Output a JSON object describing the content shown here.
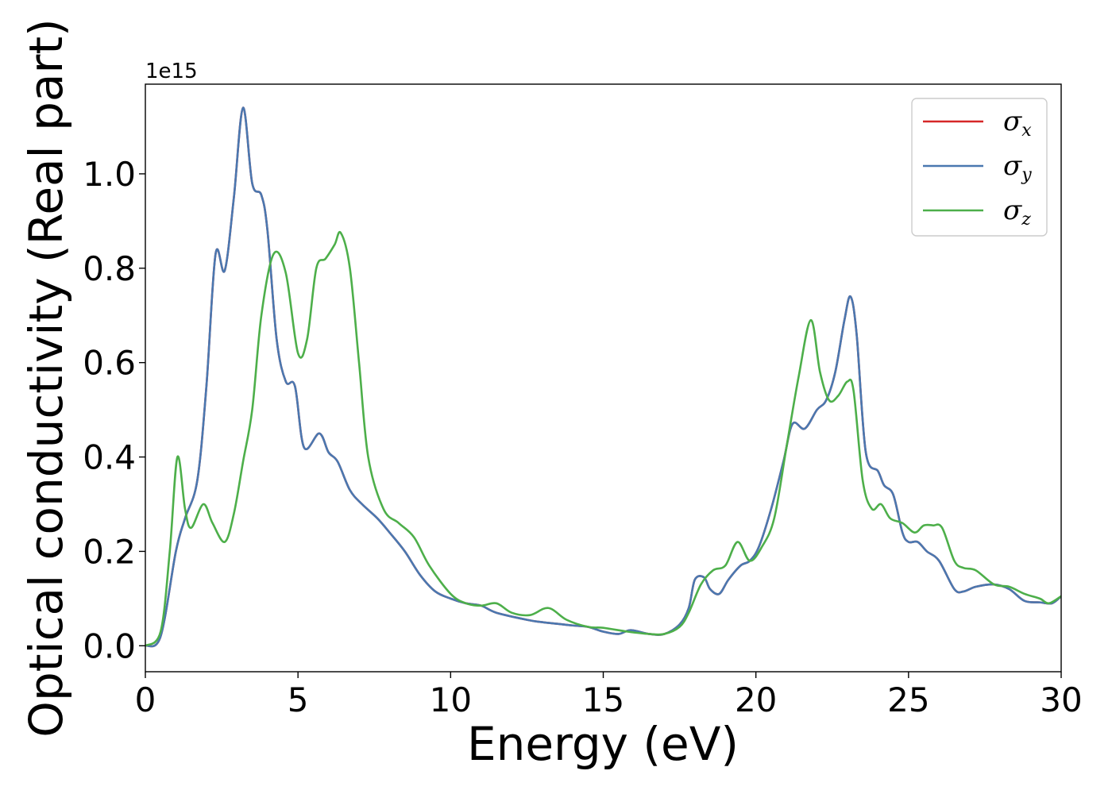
{
  "chart_data": {
    "type": "line",
    "xlabel": "Energy (eV)",
    "ylabel": "Optical conductivity (Real part)",
    "y_offset_label": "1e15",
    "xlim": [
      0,
      30
    ],
    "ylim": [
      -0.055,
      1.19
    ],
    "x_ticks": [
      0,
      5,
      10,
      15,
      20,
      25,
      30
    ],
    "y_ticks": [
      0.0,
      0.2,
      0.4,
      0.6,
      0.8,
      1.0
    ],
    "y_tick_labels": [
      "0.0",
      "0.2",
      "0.4",
      "0.6",
      "0.8",
      "1.0"
    ],
    "grid": false,
    "legend_position": "top-right",
    "series": [
      {
        "name": "σ_x",
        "legend_main": "σ",
        "legend_sub": "x",
        "color": "#d62728",
        "x": [
          0,
          0.5,
          1.0,
          1.3,
          1.7,
          2.0,
          2.3,
          2.6,
          2.9,
          3.2,
          3.5,
          3.8,
          4.0,
          4.3,
          4.6,
          4.9,
          5.2,
          5.7,
          6.0,
          6.3,
          6.7,
          7.1,
          7.6,
          8.0,
          8.5,
          9.0,
          9.5,
          10.0,
          10.5,
          11.0,
          11.5,
          12.5,
          13.0,
          14.0,
          14.5,
          15.0,
          15.5,
          15.9,
          16.5,
          17.0,
          17.5,
          17.8,
          18.0,
          18.3,
          18.5,
          18.8,
          19.1,
          19.5,
          19.8,
          20.1,
          20.5,
          20.9,
          21.2,
          21.6,
          22.0,
          22.3,
          22.6,
          22.9,
          23.1,
          23.3,
          23.6,
          24.0,
          24.2,
          24.5,
          24.8,
          25.0,
          25.3,
          25.6,
          26.0,
          26.5,
          26.8,
          27.2,
          27.8,
          28.3,
          28.8,
          29.3,
          29.7,
          30.0
        ],
        "y": [
          0.0,
          0.02,
          0.2,
          0.27,
          0.35,
          0.55,
          0.83,
          0.795,
          0.95,
          1.14,
          0.98,
          0.955,
          0.88,
          0.65,
          0.56,
          0.55,
          0.42,
          0.45,
          0.41,
          0.39,
          0.33,
          0.3,
          0.27,
          0.24,
          0.2,
          0.15,
          0.115,
          0.1,
          0.09,
          0.085,
          0.07,
          0.055,
          0.05,
          0.043,
          0.04,
          0.03,
          0.025,
          0.033,
          0.025,
          0.025,
          0.045,
          0.08,
          0.14,
          0.145,
          0.12,
          0.11,
          0.14,
          0.17,
          0.18,
          0.21,
          0.29,
          0.39,
          0.47,
          0.46,
          0.5,
          0.52,
          0.58,
          0.69,
          0.74,
          0.66,
          0.41,
          0.37,
          0.34,
          0.32,
          0.24,
          0.22,
          0.22,
          0.2,
          0.18,
          0.12,
          0.115,
          0.125,
          0.13,
          0.12,
          0.095,
          0.092,
          0.09,
          0.105
        ]
      },
      {
        "name": "σ_y",
        "legend_main": "σ",
        "legend_sub": "y",
        "color": "#4a78b0",
        "x": [
          0,
          0.5,
          1.0,
          1.3,
          1.7,
          2.0,
          2.3,
          2.6,
          2.9,
          3.2,
          3.5,
          3.8,
          4.0,
          4.3,
          4.6,
          4.9,
          5.2,
          5.7,
          6.0,
          6.3,
          6.7,
          7.1,
          7.6,
          8.0,
          8.5,
          9.0,
          9.5,
          10.0,
          10.5,
          11.0,
          11.5,
          12.5,
          13.0,
          14.0,
          14.5,
          15.0,
          15.5,
          15.9,
          16.5,
          17.0,
          17.5,
          17.8,
          18.0,
          18.3,
          18.5,
          18.8,
          19.1,
          19.5,
          19.8,
          20.1,
          20.5,
          20.9,
          21.2,
          21.6,
          22.0,
          22.3,
          22.6,
          22.9,
          23.1,
          23.3,
          23.6,
          24.0,
          24.2,
          24.5,
          24.8,
          25.0,
          25.3,
          25.6,
          26.0,
          26.5,
          26.8,
          27.2,
          27.8,
          28.3,
          28.8,
          29.3,
          29.7,
          30.0
        ],
        "y": [
          0.0,
          0.02,
          0.2,
          0.27,
          0.35,
          0.55,
          0.83,
          0.795,
          0.95,
          1.14,
          0.98,
          0.955,
          0.88,
          0.65,
          0.56,
          0.55,
          0.42,
          0.45,
          0.41,
          0.39,
          0.33,
          0.3,
          0.27,
          0.24,
          0.2,
          0.15,
          0.115,
          0.1,
          0.09,
          0.085,
          0.07,
          0.055,
          0.05,
          0.043,
          0.04,
          0.03,
          0.025,
          0.033,
          0.025,
          0.025,
          0.045,
          0.08,
          0.14,
          0.145,
          0.12,
          0.11,
          0.14,
          0.17,
          0.18,
          0.21,
          0.29,
          0.39,
          0.47,
          0.46,
          0.5,
          0.52,
          0.58,
          0.69,
          0.74,
          0.66,
          0.41,
          0.37,
          0.34,
          0.32,
          0.24,
          0.22,
          0.22,
          0.2,
          0.18,
          0.12,
          0.115,
          0.125,
          0.13,
          0.12,
          0.095,
          0.092,
          0.09,
          0.105
        ]
      },
      {
        "name": "σ_z",
        "legend_main": "σ",
        "legend_sub": "z",
        "color": "#4daf4a",
        "x": [
          0,
          0.5,
          0.8,
          1.05,
          1.3,
          1.5,
          1.9,
          2.2,
          2.6,
          2.9,
          3.2,
          3.5,
          3.8,
          4.2,
          4.6,
          5.0,
          5.3,
          5.6,
          5.9,
          6.2,
          6.4,
          6.7,
          7.0,
          7.3,
          7.8,
          8.3,
          8.8,
          9.3,
          10.0,
          10.5,
          11.0,
          11.5,
          12.0,
          12.6,
          13.2,
          13.8,
          14.5,
          15.0,
          15.8,
          16.5,
          17.0,
          17.5,
          17.8,
          18.2,
          18.6,
          19.0,
          19.4,
          19.8,
          20.2,
          20.6,
          21.0,
          21.4,
          21.8,
          22.1,
          22.4,
          22.7,
          23.0,
          23.2,
          23.5,
          23.8,
          24.1,
          24.4,
          24.8,
          25.2,
          25.5,
          25.8,
          26.1,
          26.5,
          26.8,
          27.2,
          27.8,
          28.3,
          28.8,
          29.3,
          29.6,
          30.0
        ],
        "y": [
          0.0,
          0.03,
          0.2,
          0.4,
          0.29,
          0.25,
          0.3,
          0.26,
          0.22,
          0.28,
          0.39,
          0.5,
          0.7,
          0.83,
          0.79,
          0.62,
          0.65,
          0.8,
          0.82,
          0.85,
          0.875,
          0.8,
          0.6,
          0.4,
          0.29,
          0.26,
          0.23,
          0.17,
          0.11,
          0.09,
          0.085,
          0.09,
          0.07,
          0.065,
          0.08,
          0.055,
          0.04,
          0.038,
          0.03,
          0.025,
          0.025,
          0.04,
          0.07,
          0.13,
          0.16,
          0.17,
          0.22,
          0.18,
          0.21,
          0.27,
          0.42,
          0.57,
          0.69,
          0.58,
          0.52,
          0.53,
          0.56,
          0.54,
          0.35,
          0.29,
          0.3,
          0.27,
          0.26,
          0.24,
          0.255,
          0.255,
          0.25,
          0.18,
          0.165,
          0.16,
          0.13,
          0.125,
          0.11,
          0.1,
          0.09,
          0.105
        ]
      }
    ]
  }
}
